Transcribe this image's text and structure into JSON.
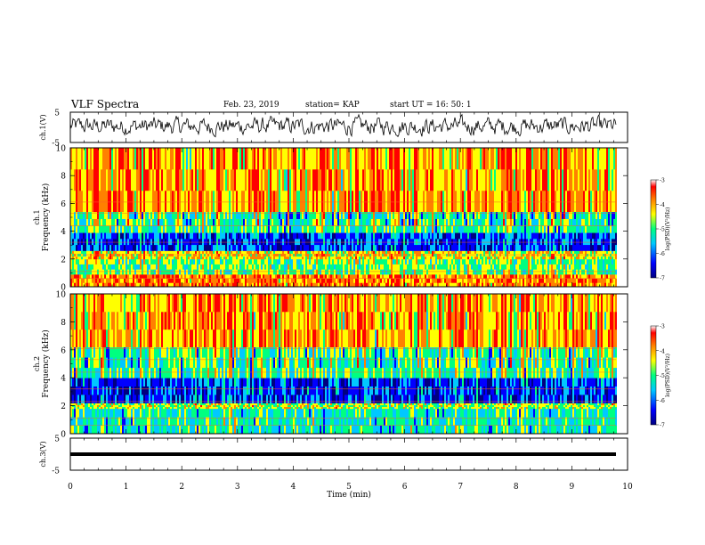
{
  "header": {
    "title": "VLF Spectra",
    "date": "Feb. 23, 2019",
    "station": "station= KAP",
    "start": "start UT =   16: 50: 1"
  },
  "colors": {
    "spectrogram_scale": [
      "#000080",
      "#0000ff",
      "#00c8ff",
      "#00ff80",
      "#ffff00",
      "#ff8000",
      "#ff0000",
      "#ffffff"
    ]
  },
  "chart_data": [
    {
      "type": "line",
      "name": "ch1-waveform",
      "ylabel": "ch.1(V)",
      "yticks": [
        "5",
        "-5"
      ],
      "ylim": [
        -5,
        5
      ],
      "xlim": [
        0,
        10
      ],
      "description_values": "noisy waveform oscillating roughly between -2 and +3 V over 0–9.8 min"
    },
    {
      "type": "heatmap",
      "name": "ch1-spectrogram",
      "ylabel": "Frequency (kHz)",
      "channel_label": "ch.1",
      "yticks": [
        "0",
        "2",
        "4",
        "6",
        "8",
        "10"
      ],
      "ylim": [
        0,
        10
      ],
      "xlim": [
        0,
        9.8
      ],
      "colorbar": {
        "label": "log(PSD)(V²/Hz)",
        "ticks": [
          "-3",
          "-4",
          "-5",
          "-6",
          "-7"
        ],
        "range": [
          -7,
          -3
        ]
      },
      "bands": [
        {
          "f_low": 0,
          "f_high": 0.9,
          "level": -3.8
        },
        {
          "f_low": 0.9,
          "f_high": 2.0,
          "level": -4.8
        },
        {
          "f_low": 2.0,
          "f_high": 2.6,
          "level": -4.3
        },
        {
          "f_low": 2.6,
          "f_high": 3.9,
          "level": -6.0
        },
        {
          "f_low": 3.9,
          "f_high": 5.4,
          "level": -5.0
        },
        {
          "f_low": 5.4,
          "f_high": 10,
          "level": -4.0
        }
      ]
    },
    {
      "type": "heatmap",
      "name": "ch2-spectrogram",
      "ylabel": "Frequency (kHz)",
      "channel_label": "ch.2",
      "yticks": [
        "0",
        "2",
        "4",
        "6",
        "8",
        "10"
      ],
      "ylim": [
        0,
        10
      ],
      "xlim": [
        0,
        9.8
      ],
      "colorbar": {
        "label": "log(PSD)(V²/Hz)",
        "ticks": [
          "-3",
          "-4",
          "-5",
          "-6",
          "-7"
        ],
        "range": [
          -7,
          -3
        ]
      },
      "bands": [
        {
          "f_low": 0,
          "f_high": 1.8,
          "level": -5.2
        },
        {
          "f_low": 1.8,
          "f_high": 2.2,
          "level": -4.6
        },
        {
          "f_low": 2.2,
          "f_high": 4.0,
          "level": -6.1
        },
        {
          "f_low": 4.0,
          "f_high": 6.2,
          "level": -5.0
        },
        {
          "f_low": 6.2,
          "f_high": 10,
          "level": -4.0
        }
      ]
    },
    {
      "type": "line",
      "name": "ch3-waveform",
      "ylabel": "ch.3(V)",
      "yticks": [
        "5",
        "-5"
      ],
      "ylim": [
        -5,
        5
      ],
      "xlim": [
        0,
        10
      ],
      "constant_value": 0
    }
  ],
  "xaxis": {
    "label": "Time (min)",
    "ticks": [
      "0",
      "1",
      "2",
      "3",
      "4",
      "5",
      "6",
      "7",
      "8",
      "9",
      "10"
    ],
    "range": [
      0,
      10
    ]
  }
}
